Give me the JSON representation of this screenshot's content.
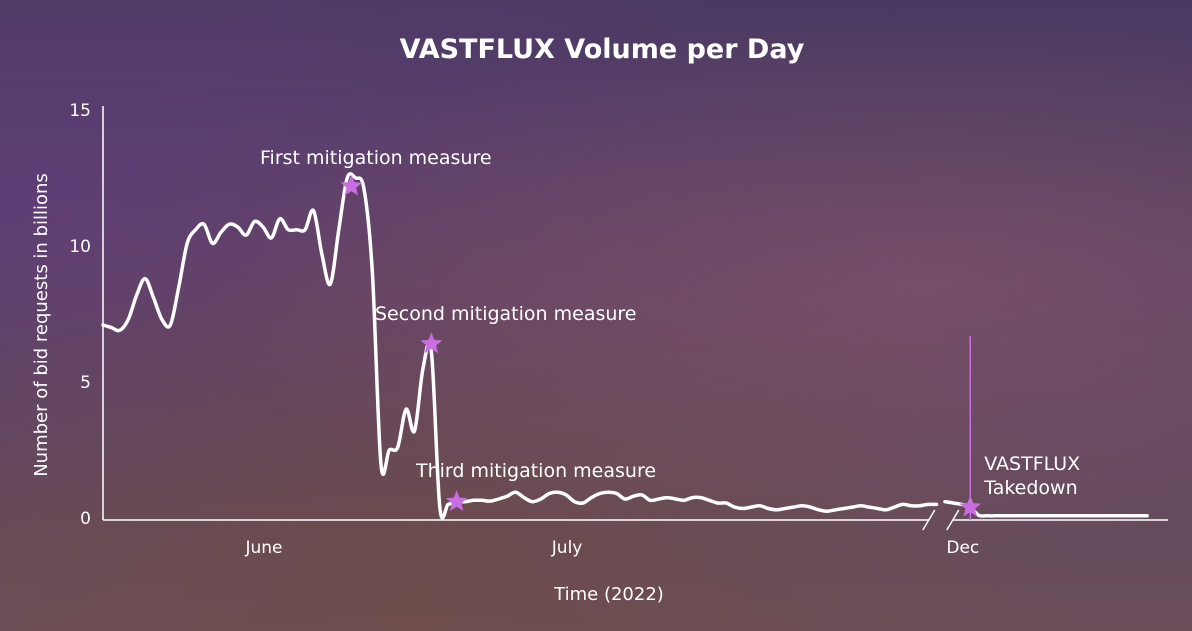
{
  "chart_data": {
    "type": "line",
    "title": "VASTFLUX Volume per Day",
    "xlabel": "Time (2022)",
    "ylabel": "Number of bid requests in billions",
    "ylim": [
      0,
      15
    ],
    "yticks": [
      0,
      5,
      10,
      15
    ],
    "xticks": [
      {
        "label": "June",
        "x": 19
      },
      {
        "label": "July",
        "x": 55
      },
      {
        "label": "Dec",
        "x": 102
      }
    ],
    "axis_break_after_x": 99,
    "grid": false,
    "series": [
      {
        "segments": [
          {
            "x": [
              0,
              1,
              2,
              3,
              4,
              5,
              6,
              7,
              8,
              9,
              10,
              11,
              12,
              13,
              14,
              15,
              16,
              17,
              18,
              19,
              20,
              21,
              22,
              23,
              24,
              25,
              26,
              27,
              28,
              29,
              30,
              31,
              32,
              33,
              34,
              35,
              36,
              37,
              38,
              39,
              40,
              41,
              42,
              43,
              44,
              45,
              46,
              47,
              48,
              49,
              50,
              51,
              52,
              53,
              54,
              55,
              56,
              57,
              58,
              59,
              60,
              61,
              62,
              63,
              64,
              65,
              66,
              67,
              68,
              69,
              70,
              71,
              72,
              73,
              74,
              75,
              76,
              77,
              78,
              79,
              80,
              81,
              82,
              83,
              84,
              85,
              86,
              87,
              88,
              89,
              90,
              91,
              92,
              93,
              94,
              95,
              96,
              97,
              98,
              99
            ],
            "values": [
              7.1,
              7.0,
              6.9,
              7.3,
              8.2,
              8.8,
              8.1,
              7.3,
              7.1,
              8.5,
              10.1,
              10.6,
              10.8,
              10.1,
              10.5,
              10.8,
              10.7,
              10.4,
              10.9,
              10.7,
              10.3,
              11.0,
              10.6,
              10.6,
              10.6,
              11.3,
              9.7,
              8.6,
              10.6,
              12.5,
              12.5,
              12.1,
              9.0,
              2.0,
              2.5,
              2.6,
              4.0,
              3.2,
              5.5,
              6.1,
              0.4,
              0.5,
              0.6,
              0.6,
              0.65,
              0.65,
              0.62,
              0.7,
              0.8,
              0.95,
              0.75,
              0.6,
              0.7,
              0.9,
              0.95,
              0.85,
              0.6,
              0.55,
              0.75,
              0.9,
              0.95,
              0.9,
              0.7,
              0.8,
              0.85,
              0.65,
              0.7,
              0.75,
              0.7,
              0.65,
              0.75,
              0.75,
              0.65,
              0.55,
              0.55,
              0.4,
              0.35,
              0.4,
              0.45,
              0.35,
              0.3,
              0.35,
              0.4,
              0.45,
              0.4,
              0.3,
              0.25,
              0.3,
              0.35,
              0.4,
              0.45,
              0.4,
              0.35,
              0.3,
              0.4,
              0.5,
              0.45,
              0.45,
              0.5,
              0.5
            ]
          },
          {
            "x": [
              100,
              101,
              102,
              103,
              104,
              105,
              106,
              107,
              108,
              109,
              110,
              111,
              112,
              113,
              114,
              115,
              116,
              117,
              118,
              119,
              120,
              121,
              122,
              123,
              124
            ],
            "values": [
              0.6,
              0.55,
              0.5,
              0.4,
              0.1,
              0.08,
              0.08,
              0.08,
              0.08,
              0.08,
              0.08,
              0.08,
              0.08,
              0.08,
              0.08,
              0.08,
              0.08,
              0.08,
              0.08,
              0.08,
              0.08,
              0.08,
              0.08,
              0.08,
              0.08
            ]
          }
        ]
      }
    ],
    "annotations": [
      {
        "text": "First mitigation measure",
        "x": 29.5,
        "y": 12.2
      },
      {
        "text": "Second mitigation measure",
        "x": 39,
        "y": 6.4
      },
      {
        "text": "Third mitigation measure",
        "x": 42,
        "y": 0.6
      },
      {
        "text": "VASTFLUX Takedown",
        "x": 103,
        "y": 0.4,
        "vertical_line": true
      }
    ],
    "colors": {
      "line": "#ffffff",
      "marker": "#c86ee0",
      "text": "#ffffff"
    }
  }
}
